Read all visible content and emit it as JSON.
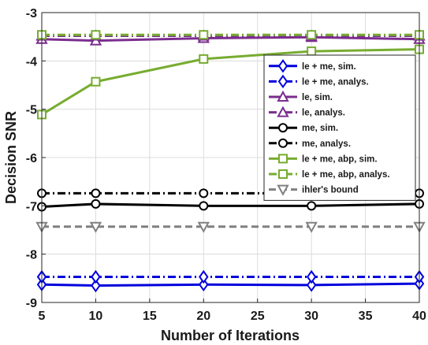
{
  "chart_data": {
    "type": "line",
    "title": "",
    "xlabel": "Number of Iterations",
    "ylabel": "Decision SNR",
    "xlim": [
      5,
      40
    ],
    "ylim": [
      -9,
      -3
    ],
    "xticks": [
      5,
      10,
      15,
      20,
      25,
      30,
      35,
      40
    ],
    "yticks": [
      -3,
      -4,
      -5,
      -6,
      -7,
      -8,
      -9
    ],
    "grid": true,
    "legend_position": "right",
    "series": [
      {
        "name": "le + me, sim.",
        "color": "#0000dd",
        "dash": "solid",
        "marker": "diamond",
        "x": [
          5,
          10,
          20,
          30,
          40
        ],
        "y": [
          -8.63,
          -8.65,
          -8.63,
          -8.64,
          -8.61
        ]
      },
      {
        "name": "le + me, analys.",
        "color": "#0000dd",
        "dash": "dashdot",
        "marker": "diamond",
        "x": [
          5,
          10,
          20,
          30,
          40
        ],
        "y": [
          -8.47,
          -8.47,
          -8.47,
          -8.47,
          -8.47
        ]
      },
      {
        "name": "le, sim.",
        "color": "#7b2d8e",
        "dash": "solid",
        "marker": "triangle",
        "x": [
          5,
          10,
          20,
          30,
          40
        ],
        "y": [
          -3.55,
          -3.58,
          -3.53,
          -3.51,
          -3.55
        ]
      },
      {
        "name": "le, analys.",
        "color": "#7b2d8e",
        "dash": "dashdot",
        "marker": "triangle",
        "x": [
          5,
          10,
          20,
          30,
          40
        ],
        "y": [
          -3.48,
          -3.48,
          -3.48,
          -3.48,
          -3.48
        ]
      },
      {
        "name": "me, sim.",
        "color": "#000000",
        "dash": "solid",
        "marker": "circle",
        "x": [
          5,
          10,
          20,
          30,
          40
        ],
        "y": [
          -7.02,
          -6.96,
          -7.0,
          -7.0,
          -6.96
        ]
      },
      {
        "name": "me, analys.",
        "color": "#000000",
        "dash": "dashdot",
        "marker": "circle",
        "x": [
          5,
          10,
          20,
          30,
          40
        ],
        "y": [
          -6.74,
          -6.74,
          -6.74,
          -6.74,
          -6.74
        ]
      },
      {
        "name": "le + me, abp, sim.",
        "color": "#77ac30",
        "dash": "solid",
        "marker": "square",
        "x": [
          5,
          10,
          20,
          30,
          40
        ],
        "y": [
          -5.11,
          -4.43,
          -3.96,
          -3.8,
          -3.76
        ]
      },
      {
        "name": "le + me, abp, analys.",
        "color": "#77ac30",
        "dash": "dashdot",
        "marker": "square",
        "x": [
          5,
          10,
          20,
          30,
          40
        ],
        "y": [
          -3.46,
          -3.46,
          -3.46,
          -3.46,
          -3.46
        ]
      },
      {
        "name": "ihler's bound",
        "color": "#808080",
        "dash": "dashed",
        "marker": "triangle-down",
        "x": [
          5,
          10,
          20,
          30,
          40
        ],
        "y": [
          -7.43,
          -7.43,
          -7.43,
          -7.43,
          -7.43
        ]
      }
    ]
  }
}
